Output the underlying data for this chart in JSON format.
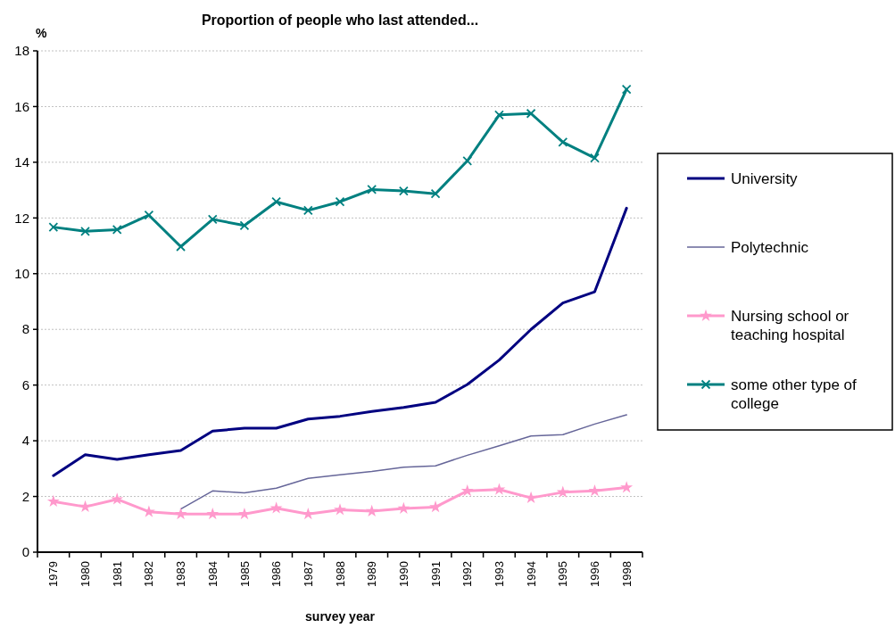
{
  "chart_data": {
    "type": "line",
    "title": "Proportion of people who last attended...",
    "xlabel": "survey year",
    "ylabel": "%",
    "categories": [
      "1979",
      "1980",
      "1981",
      "1982",
      "1983",
      "1984",
      "1985",
      "1986",
      "1987",
      "1988",
      "1989",
      "1990",
      "1991",
      "1992",
      "1993",
      "1994",
      "1995",
      "1996",
      "1998"
    ],
    "ylim": [
      0,
      18
    ],
    "yticks": [
      0,
      2,
      4,
      6,
      8,
      10,
      12,
      14,
      16,
      18
    ],
    "grid": "y",
    "legend": "right",
    "line_style": "solid",
    "series": [
      {
        "name": "University",
        "color": "#000080",
        "marker": "none",
        "values": [
          2.75,
          3.5,
          3.33,
          3.5,
          3.65,
          4.35,
          4.45,
          4.45,
          4.78,
          4.88,
          5.05,
          5.2,
          5.38,
          6.02,
          6.9,
          8.0,
          8.95,
          9.35,
          12.35
        ]
      },
      {
        "name": "Polytechnic",
        "color": "#666699",
        "marker": "none",
        "values": [
          null,
          null,
          null,
          null,
          1.55,
          2.2,
          2.13,
          2.3,
          2.65,
          2.78,
          2.9,
          3.05,
          3.1,
          3.48,
          3.82,
          4.17,
          4.22,
          4.6,
          4.93
        ]
      },
      {
        "name": "Nursing school or teaching hospital",
        "color": "#ff99cc",
        "marker": "star",
        "values": [
          1.82,
          1.63,
          1.9,
          1.45,
          1.37,
          1.37,
          1.37,
          1.58,
          1.37,
          1.52,
          1.47,
          1.57,
          1.62,
          2.2,
          2.25,
          1.95,
          2.15,
          2.2,
          2.32
        ]
      },
      {
        "name": "some other type of college",
        "color": "#008080",
        "marker": "cross",
        "values": [
          11.67,
          11.52,
          11.58,
          12.1,
          10.97,
          11.95,
          11.73,
          12.58,
          12.27,
          12.58,
          13.02,
          12.97,
          12.87,
          14.05,
          15.7,
          15.75,
          14.72,
          14.15,
          16.62
        ]
      }
    ]
  }
}
